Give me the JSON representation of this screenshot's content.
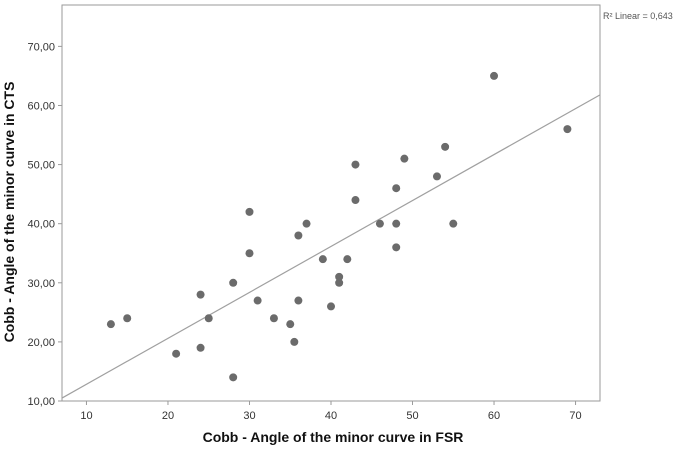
{
  "chart_data": {
    "type": "scatter",
    "title": "",
    "xlabel": "Cobb - Angle of the minor curve in FSR",
    "ylabel": "Cobb - Angle of the minor curve in CTS",
    "xlim": [
      7,
      73
    ],
    "ylim": [
      10,
      77
    ],
    "x_ticks": [
      10,
      20,
      30,
      40,
      50,
      60,
      70
    ],
    "x_tick_labels": [
      "10",
      "20",
      "30",
      "40",
      "50",
      "60",
      "70"
    ],
    "y_ticks": [
      10,
      20,
      30,
      40,
      50,
      60,
      70
    ],
    "y_tick_labels": [
      "10,00",
      "20,00",
      "30,00",
      "40,00",
      "50,00",
      "60,00",
      "70,00"
    ],
    "grid": "off",
    "annotation": "R² Linear = 0,643",
    "points": [
      {
        "x": 13,
        "y": 23
      },
      {
        "x": 15,
        "y": 24
      },
      {
        "x": 21,
        "y": 18
      },
      {
        "x": 24,
        "y": 28
      },
      {
        "x": 24,
        "y": 19
      },
      {
        "x": 25,
        "y": 24
      },
      {
        "x": 28,
        "y": 30
      },
      {
        "x": 28,
        "y": 14
      },
      {
        "x": 30,
        "y": 42
      },
      {
        "x": 30,
        "y": 35
      },
      {
        "x": 31,
        "y": 27
      },
      {
        "x": 33,
        "y": 24
      },
      {
        "x": 35,
        "y": 23
      },
      {
        "x": 35.5,
        "y": 20
      },
      {
        "x": 36,
        "y": 38
      },
      {
        "x": 36,
        "y": 27
      },
      {
        "x": 37,
        "y": 40
      },
      {
        "x": 39,
        "y": 34
      },
      {
        "x": 40,
        "y": 26
      },
      {
        "x": 41,
        "y": 31
      },
      {
        "x": 41,
        "y": 30
      },
      {
        "x": 42,
        "y": 34
      },
      {
        "x": 43,
        "y": 50
      },
      {
        "x": 43,
        "y": 44
      },
      {
        "x": 46,
        "y": 40
      },
      {
        "x": 48,
        "y": 46
      },
      {
        "x": 48,
        "y": 40
      },
      {
        "x": 48,
        "y": 36
      },
      {
        "x": 49,
        "y": 51
      },
      {
        "x": 53,
        "y": 48
      },
      {
        "x": 54,
        "y": 53
      },
      {
        "x": 55,
        "y": 40
      },
      {
        "x": 60,
        "y": 65
      },
      {
        "x": 69,
        "y": 56
      }
    ],
    "fit_line": {
      "x": [
        7,
        73
      ],
      "y": [
        10.5,
        61.8
      ]
    },
    "colors": {
      "points": "#6b6b6b",
      "fit_line": "#a0a0a0",
      "axes": "#9a9a9a"
    }
  }
}
